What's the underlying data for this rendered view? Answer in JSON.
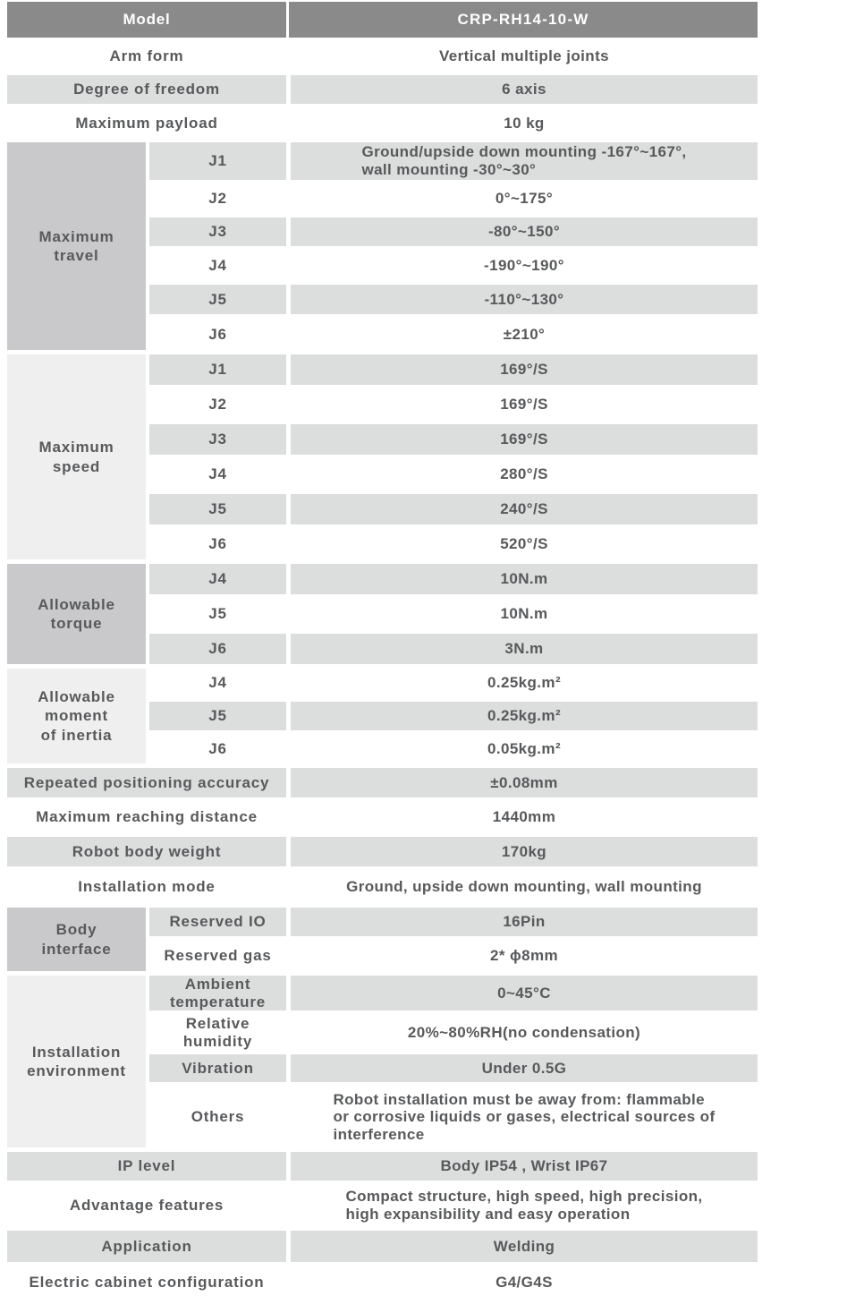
{
  "colors": {
    "header_bg": "#8a8a8a",
    "header_text": "#ffffff",
    "shaded_row_bg": "#dcdddd",
    "group_block_medium": "#c9c9cb",
    "group_block_light": "#efefef",
    "text": "#58595b"
  },
  "header": {
    "label": "Model",
    "value": "CRP-RH14-10-W"
  },
  "rows_top": [
    {
      "label": "Arm form",
      "value": "Vertical multiple joints"
    },
    {
      "label": "Degree of freedom",
      "value": "6 axis"
    },
    {
      "label": "Maximum payload",
      "value": "10 kg"
    }
  ],
  "groups": [
    {
      "label": "Maximum\ntravel",
      "rows": [
        {
          "sub": "J1",
          "value": "Ground/upside down mounting -167°~167°,\nwall mounting -30°~30°"
        },
        {
          "sub": "J2",
          "value": "0°~175°"
        },
        {
          "sub": "J3",
          "value": "-80°~150°"
        },
        {
          "sub": "J4",
          "value": "-190°~190°"
        },
        {
          "sub": "J5",
          "value": "-110°~130°"
        },
        {
          "sub": "J6",
          "value": "±210°"
        }
      ]
    },
    {
      "label": "Maximum\nspeed",
      "rows": [
        {
          "sub": "J1",
          "value": "169°/S"
        },
        {
          "sub": "J2",
          "value": "169°/S"
        },
        {
          "sub": "J3",
          "value": "169°/S"
        },
        {
          "sub": "J4",
          "value": "280°/S"
        },
        {
          "sub": "J5",
          "value": "240°/S"
        },
        {
          "sub": "J6",
          "value": "520°/S"
        }
      ]
    },
    {
      "label": "Allowable\ntorque",
      "rows": [
        {
          "sub": "J4",
          "value": "10N.m"
        },
        {
          "sub": "J5",
          "value": "10N.m"
        },
        {
          "sub": "J6",
          "value": "3N.m"
        }
      ]
    },
    {
      "label": "Allowable\nmoment\nof inertia",
      "rows": [
        {
          "sub": "J4",
          "value": "0.25kg.m²"
        },
        {
          "sub": "J5",
          "value": "0.25kg.m²"
        },
        {
          "sub": "J6",
          "value": "0.05kg.m²"
        }
      ]
    }
  ],
  "rows_mid": [
    {
      "label": "Repeated positioning accuracy",
      "value": "±0.08mm"
    },
    {
      "label": "Maximum reaching distance",
      "value": "1440mm"
    },
    {
      "label": "Robot body weight",
      "value": "170kg"
    },
    {
      "label": "Installation mode",
      "value": "Ground, upside down mounting, wall mounting"
    }
  ],
  "groups2": [
    {
      "label": "Body\ninterface",
      "rows": [
        {
          "sub": "Reserved IO",
          "value": "16Pin"
        },
        {
          "sub": "Reserved gas",
          "value": "2* ϕ8mm"
        }
      ]
    },
    {
      "label": "Installation\nenvironment",
      "rows": [
        {
          "sub": "Ambient\ntemperature",
          "value": "0~45°C"
        },
        {
          "sub": "Relative\nhumidity",
          "value": "20%~80%RH(no condensation)"
        },
        {
          "sub": "Vibration",
          "value": "Under 0.5G"
        },
        {
          "sub": "Others",
          "value": "Robot installation must be away from: flammable\nor corrosive liquids or gases, electrical sources of\ninterference"
        }
      ]
    }
  ],
  "rows_bottom": [
    {
      "label": "IP level",
      "value": "Body IP54 , Wrist IP67"
    },
    {
      "label": "Advantage features",
      "value": "Compact structure, high speed, high precision,\nhigh expansibility and easy operation"
    },
    {
      "label": "Application",
      "value": "Welding"
    },
    {
      "label": "Electric cabinet configuration",
      "value": "G4/G4S"
    }
  ]
}
